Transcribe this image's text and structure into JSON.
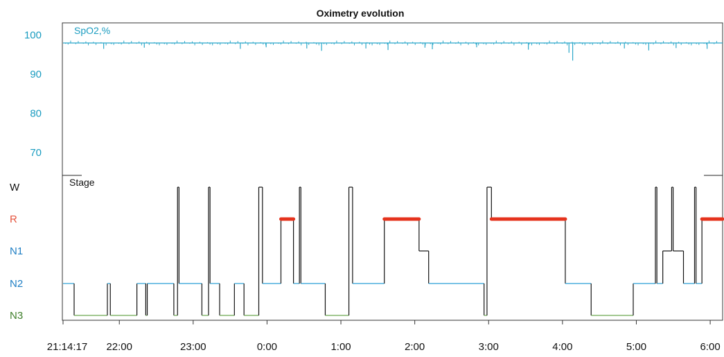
{
  "chart_data": [
    {
      "type": "line",
      "title": "Oximetry evolution",
      "series_label": "SpO2,%",
      "ylim": [
        65,
        103
      ],
      "y_ticks": [
        "100",
        "90",
        "80",
        "70"
      ],
      "y_tick_values": [
        100,
        90,
        80,
        70
      ],
      "baseline": 98,
      "x_unit": "hours after 21:14:17",
      "xlim": [
        0,
        8.93
      ],
      "dips": [
        {
          "x": 0.55,
          "y": 96.5
        },
        {
          "x": 1.1,
          "y": 96.8
        },
        {
          "x": 2.4,
          "y": 96.5
        },
        {
          "x": 2.75,
          "y": 96.9
        },
        {
          "x": 3.3,
          "y": 96.6
        },
        {
          "x": 3.5,
          "y": 96.0
        },
        {
          "x": 4.1,
          "y": 96.6
        },
        {
          "x": 4.4,
          "y": 96.2
        },
        {
          "x": 4.9,
          "y": 96.8
        },
        {
          "x": 5.0,
          "y": 96.4
        },
        {
          "x": 5.6,
          "y": 96.9
        },
        {
          "x": 6.3,
          "y": 96.3
        },
        {
          "x": 6.85,
          "y": 95.5
        },
        {
          "x": 6.9,
          "y": 93.5
        },
        {
          "x": 7.6,
          "y": 96.6
        },
        {
          "x": 7.93,
          "y": 96.1
        },
        {
          "x": 8.3,
          "y": 96.7
        },
        {
          "x": 8.72,
          "y": 96.5
        }
      ],
      "colors": {
        "line": "#2aa7c9",
        "label": "#1a9cc0"
      }
    },
    {
      "type": "line",
      "series_label": "Stage",
      "y_categories": [
        "W",
        "R",
        "N1",
        "N2",
        "N3"
      ],
      "category_colors": {
        "W": "#111111",
        "R": "#e5533d",
        "N1": "#1f7fc4",
        "N2": "#1f7fc4",
        "N3": "#3f7f2b"
      },
      "x_ticks": [
        "21:14:17",
        "22:00",
        "23:00",
        "0:00",
        "1:00",
        "2:00",
        "3:00",
        "4:00",
        "5:00",
        "6:00"
      ],
      "x_tick_values": [
        0,
        0.7619,
        1.7619,
        2.7619,
        3.7619,
        4.7619,
        5.7619,
        6.7619,
        7.7619,
        8.7619
      ],
      "xlim": [
        0,
        8.93
      ],
      "hypnogram": [
        {
          "t": 0.0,
          "s": "N2"
        },
        {
          "t": 0.15,
          "s": "N3"
        },
        {
          "t": 0.6,
          "s": "N2"
        },
        {
          "t": 0.64,
          "s": "N3"
        },
        {
          "t": 1.0,
          "s": "N2"
        },
        {
          "t": 1.12,
          "s": "N3"
        },
        {
          "t": 1.14,
          "s": "N2"
        },
        {
          "t": 1.5,
          "s": "N3"
        },
        {
          "t": 1.55,
          "s": "W"
        },
        {
          "t": 1.57,
          "s": "N2"
        },
        {
          "t": 1.88,
          "s": "N3"
        },
        {
          "t": 1.97,
          "s": "W"
        },
        {
          "t": 1.99,
          "s": "N2"
        },
        {
          "t": 2.12,
          "s": "N3"
        },
        {
          "t": 2.32,
          "s": "N2"
        },
        {
          "t": 2.45,
          "s": "N3"
        },
        {
          "t": 2.65,
          "s": "W"
        },
        {
          "t": 2.7,
          "s": "N2"
        },
        {
          "t": 2.95,
          "s": "R"
        },
        {
          "t": 3.12,
          "s": "N2"
        },
        {
          "t": 3.2,
          "s": "W"
        },
        {
          "t": 3.22,
          "s": "N2"
        },
        {
          "t": 3.55,
          "s": "N3"
        },
        {
          "t": 3.87,
          "s": "W"
        },
        {
          "t": 3.92,
          "s": "N2"
        },
        {
          "t": 4.35,
          "s": "R"
        },
        {
          "t": 4.82,
          "s": "N1"
        },
        {
          "t": 4.95,
          "s": "N2"
        },
        {
          "t": 5.7,
          "s": "N3"
        },
        {
          "t": 5.74,
          "s": "W"
        },
        {
          "t": 5.8,
          "s": "R"
        },
        {
          "t": 6.8,
          "s": "N2"
        },
        {
          "t": 7.15,
          "s": "N3"
        },
        {
          "t": 7.72,
          "s": "N2"
        },
        {
          "t": 8.02,
          "s": "W"
        },
        {
          "t": 8.04,
          "s": "N2"
        },
        {
          "t": 8.12,
          "s": "N1"
        },
        {
          "t": 8.24,
          "s": "W"
        },
        {
          "t": 8.26,
          "s": "N1"
        },
        {
          "t": 8.4,
          "s": "N2"
        },
        {
          "t": 8.55,
          "s": "W"
        },
        {
          "t": 8.57,
          "s": "N2"
        },
        {
          "t": 8.65,
          "s": "R"
        },
        {
          "t": 8.93,
          "s": "R"
        }
      ],
      "rem_segments": [
        [
          2.95,
          3.12
        ],
        [
          4.35,
          4.82
        ],
        [
          5.8,
          6.8
        ],
        [
          8.65,
          8.93
        ]
      ],
      "colors": {
        "line": "#111111",
        "n2_line": "#2a9fd6",
        "n3_line": "#6aa84f",
        "rem": "#e5331d"
      }
    }
  ]
}
